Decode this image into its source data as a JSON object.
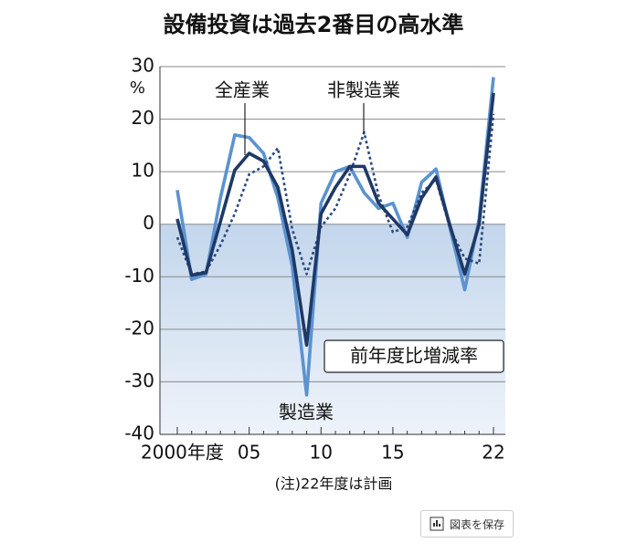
{
  "chart_data": {
    "type": "line",
    "title": "設備投資は過去2番目の高水準",
    "y_unit": "%",
    "annotation": "前年度比増減率",
    "note": "(注)22年度は計画",
    "categories": [
      "2000年度",
      null,
      null,
      null,
      null,
      "05",
      null,
      null,
      null,
      null,
      "10",
      null,
      null,
      null,
      null,
      "15",
      null,
      null,
      null,
      null,
      null,
      null,
      "22"
    ],
    "ylim": [
      -40,
      30
    ],
    "yticks": [
      30,
      20,
      10,
      0,
      -10,
      -20,
      -30,
      -40
    ],
    "grid": true,
    "series": [
      {
        "name": "全産業",
        "color": "#1f3966",
        "style": "solid",
        "values": [
          1,
          -9.7,
          -9.2,
          0.5,
          10.3,
          13.5,
          12,
          7,
          -5,
          -23,
          2,
          7,
          11,
          11,
          4,
          1,
          -2,
          5,
          9,
          -0.5,
          -9.5,
          0,
          25
        ]
      },
      {
        "name": "製造業",
        "color": "#5b93cf",
        "style": "solid",
        "values": [
          6.5,
          -10.5,
          -9.5,
          5,
          17,
          16.5,
          13.5,
          5,
          -8,
          -32.5,
          4,
          10,
          11,
          6,
          3,
          4,
          -2.5,
          8,
          10.5,
          -1,
          -12.5,
          1,
          28
        ]
      },
      {
        "name": "非製造業",
        "color": "#2a4a80",
        "style": "dotted",
        "values": [
          -2.5,
          -9.5,
          -9,
          -4,
          2,
          9.5,
          11,
          14.5,
          -1,
          -9.5,
          -0.5,
          3,
          9.5,
          17.5,
          5.5,
          -1.5,
          -0.5,
          6,
          8.5,
          -1,
          -6.5,
          -7.5,
          21
        ]
      }
    ]
  },
  "save_button": "図表を保存"
}
